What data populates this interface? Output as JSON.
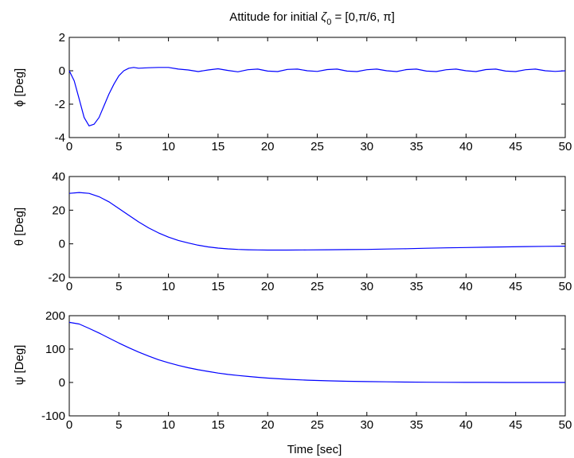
{
  "figure": {
    "title_prefix": "Attitude for initial ",
    "title_symbol": "ζ",
    "title_subscript": "0",
    "title_suffix": " = [0,π/6, π]",
    "xlabel": "Time [sec]",
    "line_color": "#0000ff"
  },
  "chart_data": [
    {
      "type": "line",
      "ylabel": "ϕ [Deg]",
      "xlim": [
        0,
        50
      ],
      "ylim": [
        -4,
        2
      ],
      "x_ticks": [
        "0",
        "5",
        "10",
        "15",
        "20",
        "25",
        "30",
        "35",
        "40",
        "45",
        "50"
      ],
      "y_ticks": [
        "-4",
        "-2",
        "0",
        "2"
      ],
      "grid": false,
      "series": [
        {
          "x": [
            0,
            0.5,
            1,
            1.5,
            2,
            2.5,
            3,
            3.5,
            4,
            4.5,
            5,
            5.5,
            6,
            6.5,
            7,
            8,
            9,
            10,
            11,
            12,
            13,
            14,
            15,
            16,
            17,
            18,
            19,
            20,
            21,
            22,
            23,
            24,
            25,
            26,
            27,
            28,
            29,
            30,
            31,
            32,
            33,
            34,
            35,
            36,
            37,
            38,
            39,
            40,
            41,
            42,
            43,
            44,
            45,
            46,
            47,
            48,
            49,
            50
          ],
          "y": [
            0,
            -0.6,
            -1.7,
            -2.8,
            -3.3,
            -3.2,
            -2.8,
            -2.1,
            -1.4,
            -0.8,
            -0.3,
            0,
            0.15,
            0.2,
            0.15,
            0.18,
            0.2,
            0.2,
            0.1,
            0.05,
            -0.05,
            0.05,
            0.12,
            0.02,
            -0.06,
            0.06,
            0.1,
            -0.02,
            -0.05,
            0.08,
            0.1,
            0,
            -0.04,
            0.07,
            0.1,
            -0.02,
            -0.05,
            0.06,
            0.1,
            0,
            -0.05,
            0.07,
            0.1,
            -0.02,
            -0.05,
            0.06,
            0.1,
            0,
            -0.05,
            0.07,
            0.1,
            -0.02,
            -0.05,
            0.06,
            0.1,
            0,
            -0.04,
            0
          ]
        }
      ]
    },
    {
      "type": "line",
      "ylabel": "θ [Deg]",
      "xlim": [
        0,
        50
      ],
      "ylim": [
        -20,
        40
      ],
      "x_ticks": [
        "0",
        "5",
        "10",
        "15",
        "20",
        "25",
        "30",
        "35",
        "40",
        "45",
        "50"
      ],
      "y_ticks": [
        "-20",
        "0",
        "20",
        "40"
      ],
      "grid": false,
      "series": [
        {
          "x": [
            0,
            1,
            2,
            3,
            4,
            5,
            6,
            7,
            8,
            9,
            10,
            11,
            12,
            13,
            14,
            15,
            16,
            17,
            18,
            19,
            20,
            22,
            24,
            26,
            28,
            30,
            32,
            34,
            36,
            38,
            40,
            42,
            44,
            46,
            48,
            50
          ],
          "y": [
            30,
            30.5,
            30,
            28,
            25,
            21,
            17,
            13,
            9.5,
            6.5,
            4,
            2,
            0.5,
            -0.8,
            -1.8,
            -2.5,
            -3,
            -3.3,
            -3.5,
            -3.6,
            -3.7,
            -3.7,
            -3.6,
            -3.5,
            -3.4,
            -3.3,
            -3.1,
            -2.9,
            -2.6,
            -2.4,
            -2.2,
            -2,
            -1.8,
            -1.6,
            -1.5,
            -1.4
          ]
        }
      ]
    },
    {
      "type": "line",
      "ylabel": "ψ [Deg]",
      "xlim": [
        0,
        50
      ],
      "ylim": [
        -100,
        200
      ],
      "x_ticks": [
        "0",
        "5",
        "10",
        "15",
        "20",
        "25",
        "30",
        "35",
        "40",
        "45",
        "50"
      ],
      "y_ticks": [
        "-100",
        "0",
        "100",
        "200"
      ],
      "grid": false,
      "series": [
        {
          "x": [
            0,
            1,
            2,
            3,
            4,
            5,
            6,
            7,
            8,
            9,
            10,
            11,
            12,
            13,
            14,
            15,
            16,
            17,
            18,
            19,
            20,
            22,
            24,
            26,
            28,
            30,
            32,
            34,
            36,
            38,
            40,
            42,
            44,
            46,
            48,
            50
          ],
          "y": [
            180,
            175,
            162,
            148,
            133,
            118,
            104,
            91,
            79,
            68,
            59,
            51,
            44,
            38,
            33,
            28,
            24,
            21,
            18,
            15.5,
            13,
            9.5,
            7,
            5,
            3.5,
            2.5,
            1.8,
            1.2,
            0.8,
            0.5,
            0.3,
            0.2,
            0.1,
            0.05,
            0.02,
            0
          ]
        }
      ]
    }
  ]
}
